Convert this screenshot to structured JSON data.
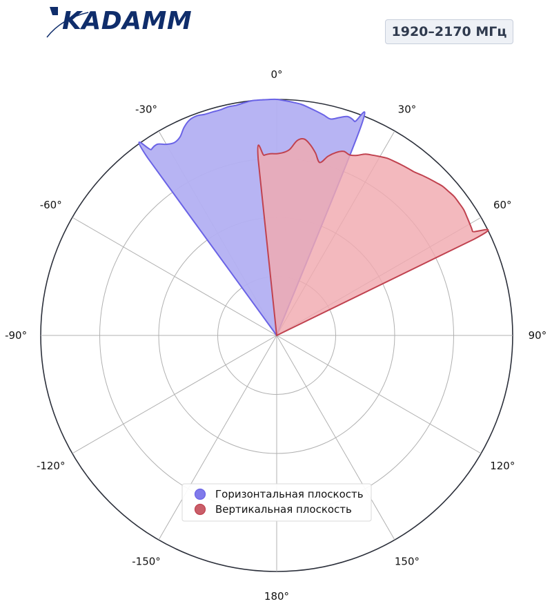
{
  "brand": {
    "name": "KADAMM"
  },
  "frequency_label": "1920–2170 МГц",
  "colors": {
    "horizontal": "#6a63e6",
    "horizontal_fill": "#b3b0f2",
    "vertical": "#c0424f",
    "vertical_fill": "#f0a9b0",
    "grid": "#b0b0b0",
    "outer_ring": "#2b2f3a"
  },
  "chart_data": {
    "type": "polar-area",
    "angle_ticks": [
      "0°",
      "30°",
      "60°",
      "90°",
      "120°",
      "150°",
      "180°",
      "-150°",
      "-120°",
      "-90°",
      "-60°",
      "-30°"
    ],
    "angle_tick_values": [
      0,
      30,
      60,
      90,
      120,
      150,
      180,
      -150,
      -120,
      -90,
      -60,
      -30
    ],
    "radial_max": 1.0,
    "radial_grid": [
      0.25,
      0.5,
      0.75,
      1.0
    ],
    "legend_position": "bottom-center",
    "series": [
      {
        "name": "Горизонтальная плоскость",
        "color_key": "horizontal",
        "theta": [
          -38,
          -36,
          -34,
          -32,
          -30,
          -28,
          -26,
          -24,
          -22,
          -20,
          -18,
          -16,
          -14,
          -12,
          -10,
          -8,
          -6,
          -4,
          -2,
          0,
          2,
          4,
          6,
          8,
          10,
          12,
          14,
          16,
          18,
          20,
          22,
          24,
          26
        ],
        "r": [
          0.0,
          0.93,
          0.95,
          0.955,
          0.935,
          0.925,
          0.935,
          0.965,
          0.985,
          0.99,
          0.985,
          0.985,
          0.985,
          0.99,
          0.99,
          0.995,
          1.0,
          1.0,
          1.0,
          1.0,
          0.995,
          0.99,
          0.985,
          0.975,
          0.965,
          0.955,
          0.945,
          0.96,
          0.975,
          0.965,
          0.94,
          0.0,
          0.0
        ]
      },
      {
        "name": "Вертикальная плоскость",
        "color_key": "vertical",
        "theta": [
          -8,
          -6,
          -4,
          -2,
          0,
          2,
          4,
          6,
          8,
          10,
          12,
          14,
          16,
          18,
          20,
          22,
          24,
          26,
          28,
          30,
          32,
          34,
          36,
          38,
          40,
          42,
          44,
          46,
          48,
          50,
          52,
          54,
          56,
          58,
          60,
          62,
          64,
          65
        ],
        "r": [
          0.0,
          0.75,
          0.765,
          0.77,
          0.77,
          0.775,
          0.79,
          0.83,
          0.84,
          0.82,
          0.79,
          0.755,
          0.79,
          0.815,
          0.83,
          0.825,
          0.835,
          0.855,
          0.865,
          0.875,
          0.885,
          0.89,
          0.895,
          0.9,
          0.905,
          0.915,
          0.925,
          0.935,
          0.945,
          0.95,
          0.955,
          0.955,
          0.955,
          0.95,
          0.945,
          0.94,
          0.93,
          0.0
        ]
      }
    ]
  }
}
